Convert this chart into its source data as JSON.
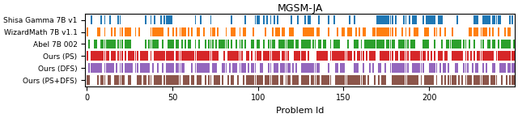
{
  "title": "MGSM-JA",
  "xlabel": "Problem Id",
  "xlim": [
    -1,
    250
  ],
  "xticks": [
    0,
    50,
    100,
    150,
    200
  ],
  "rows": [
    {
      "label": "Shisa Gamma 7B v1",
      "color": "#1f77b4",
      "rate": 0.22,
      "seed": 101
    },
    {
      "label": "WizardMath 7B v1.1",
      "color": "#ff7f0e",
      "rate": 0.4,
      "seed": 202
    },
    {
      "label": "Abel 7B 002",
      "color": "#2ca02c",
      "rate": 0.55,
      "seed": 303
    },
    {
      "label": "Ours (PS)",
      "color": "#d62728",
      "rate": 0.78,
      "seed": 404
    },
    {
      "label": "Ours (DFS)",
      "color": "#9467bd",
      "rate": 0.52,
      "seed": 505
    },
    {
      "label": "Ours (PS+DFS)",
      "color": "#8c564b",
      "rate": 0.65,
      "seed": 606
    }
  ],
  "n_problems": 250,
  "bar_height": 0.78,
  "figsize": [
    6.4,
    1.46
  ],
  "dpi": 100
}
